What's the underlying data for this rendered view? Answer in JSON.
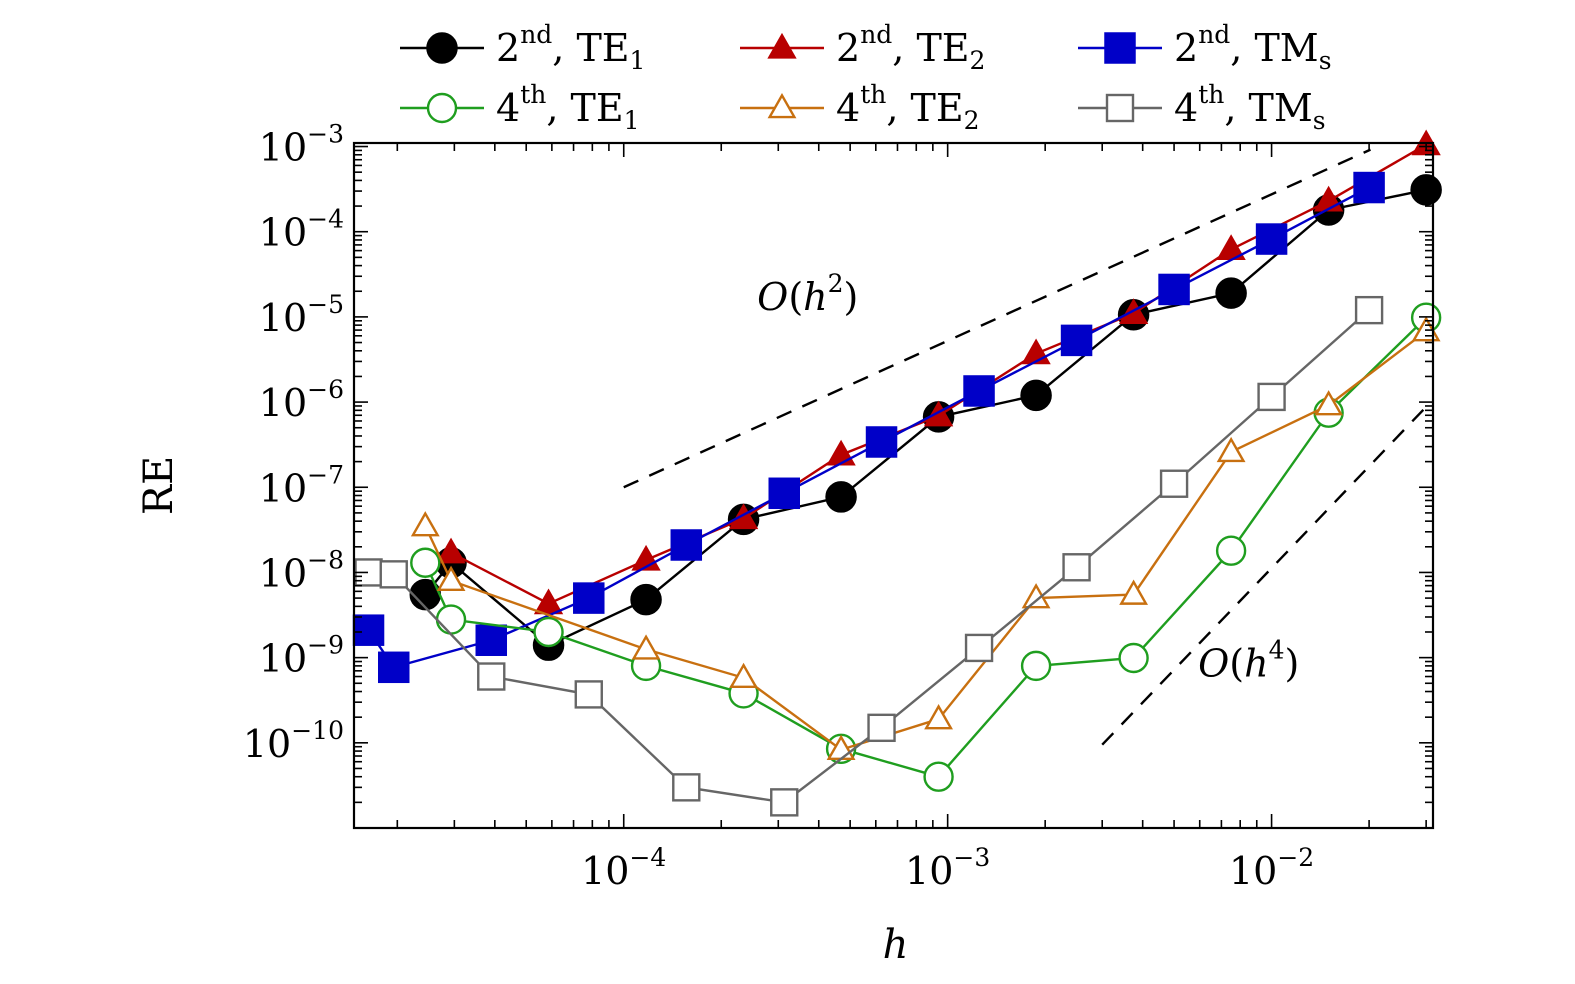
{
  "chart_data": {
    "type": "line",
    "xlabel": "h",
    "ylabel": "RE",
    "xscale": "log",
    "yscale": "log",
    "xlim": [
      1.47e-05,
      0.0315
    ],
    "ylim": [
      1e-11,
      0.0011
    ],
    "xticks": [
      {
        "value": 0.0001,
        "base": "10",
        "exp": "−4"
      },
      {
        "value": 0.001,
        "base": "10",
        "exp": "−3"
      },
      {
        "value": 0.01,
        "base": "10",
        "exp": "−2"
      }
    ],
    "yticks": [
      {
        "value": 1e-10,
        "base": "10",
        "exp": "−10"
      },
      {
        "value": 1e-09,
        "base": "10",
        "exp": "−9"
      },
      {
        "value": 1e-08,
        "base": "10",
        "exp": "−8"
      },
      {
        "value": 1e-07,
        "base": "10",
        "exp": "−7"
      },
      {
        "value": 1e-06,
        "base": "10",
        "exp": "−6"
      },
      {
        "value": 1e-05,
        "base": "10",
        "exp": "−5"
      },
      {
        "value": 0.0001,
        "base": "10",
        "exp": "−4"
      },
      {
        "value": 0.001,
        "base": "10",
        "exp": "−3"
      }
    ],
    "grid": false,
    "legend_position": "top",
    "series": [
      {
        "name": "2nd, TE1",
        "order": "2",
        "order_sup": "nd",
        "mode": "TE",
        "mode_sub": "1",
        "color": "#000000",
        "marker": "circle",
        "filled": true,
        "x": [
          2.44e-05,
          2.93e-05,
          5.86e-05,
          0.0001172,
          0.0002344,
          0.0004688,
          0.0009375,
          0.001875,
          0.00375,
          0.0075,
          0.015,
          0.03
        ],
        "y": [
          5.5e-09,
          1.3e-08,
          1.4e-09,
          4.8e-09,
          4.2e-08,
          7.7e-08,
          6.7e-07,
          1.2e-06,
          1.06e-05,
          1.9e-05,
          0.00018,
          0.00031
        ]
      },
      {
        "name": "2nd, TE2",
        "order": "2",
        "order_sup": "nd",
        "mode": "TE",
        "mode_sub": "2",
        "color": "#b80000",
        "marker": "triangle",
        "filled": true,
        "x": [
          2.93e-05,
          5.86e-05,
          0.0001172,
          0.0002344,
          0.0004688,
          0.0009375,
          0.001875,
          0.00375,
          0.0075,
          0.015,
          0.03
        ],
        "y": [
          1.7e-08,
          4.3e-09,
          1.4e-08,
          4.3e-08,
          2.4e-07,
          6.9e-07,
          3.7e-06,
          1.1e-05,
          6.2e-05,
          0.00023,
          0.00105
        ]
      },
      {
        "name": "2nd, TMs",
        "order": "2",
        "order_sup": "nd",
        "mode": "TM",
        "mode_sub": "s",
        "color": "#0000c8",
        "marker": "square",
        "filled": true,
        "x": [
          1.63e-05,
          1.95e-05,
          3.9e-05,
          7.8e-05,
          0.000156,
          0.000313,
          0.000625,
          0.00125,
          0.0025,
          0.005,
          0.01,
          0.02
        ],
        "y": [
          2.1e-09,
          7.7e-10,
          1.6e-09,
          5e-09,
          2.1e-08,
          8.5e-08,
          3.4e-07,
          1.35e-06,
          5.3e-06,
          2.1e-05,
          8.2e-05,
          0.00033
        ]
      },
      {
        "name": "4th, TE1",
        "order": "4",
        "order_sup": "th",
        "mode": "TE",
        "mode_sub": "1",
        "color": "#1f9e1f",
        "marker": "circle",
        "filled": false,
        "x": [
          2.44e-05,
          2.93e-05,
          5.86e-05,
          0.0001172,
          0.0002344,
          0.0004688,
          0.0009375,
          0.001875,
          0.00375,
          0.0075,
          0.015,
          0.03
        ],
        "y": [
          1.3e-08,
          2.8e-09,
          2e-09,
          8e-10,
          3.8e-10,
          8.5e-11,
          4e-11,
          8e-10,
          9.9e-10,
          1.8e-08,
          7.5e-07,
          9.8e-06
        ]
      },
      {
        "name": "4th, TE2",
        "order": "4",
        "order_sup": "th",
        "mode": "TE",
        "mode_sub": "2",
        "color": "#c87010",
        "marker": "triangle",
        "filled": false,
        "x": [
          2.44e-05,
          2.93e-05,
          0.0001172,
          0.0002344,
          0.0004688,
          0.0009375,
          0.001875,
          0.00375,
          0.0075,
          0.015,
          0.03
        ],
        "y": [
          3.5e-08,
          8e-09,
          1.25e-09,
          5.8e-10,
          8.3e-11,
          1.9e-10,
          5e-09,
          5.5e-09,
          2.6e-07,
          9.2e-07,
          6.8e-06
        ]
      },
      {
        "name": "4th, TMs",
        "order": "4",
        "order_sup": "th",
        "mode": "TM",
        "mode_sub": "s",
        "color": "#666666",
        "marker": "square",
        "filled": false,
        "x": [
          1.63e-05,
          1.95e-05,
          3.9e-05,
          7.8e-05,
          0.000156,
          0.000313,
          0.000625,
          0.00125,
          0.0025,
          0.005,
          0.01,
          0.02
        ],
        "y": [
          1e-08,
          9.5e-09,
          6e-10,
          3.7e-10,
          3e-11,
          2e-11,
          1.5e-10,
          1.3e-09,
          1.15e-08,
          1.1e-07,
          1.15e-06,
          1.2e-05
        ]
      }
    ],
    "reference_lines": [
      {
        "label_prefix": "O(h",
        "label_exp": "2",
        "label_suffix": ")",
        "x": [
          0.0001,
          0.0202
        ],
        "y": [
          1e-07,
          0.00092
        ],
        "label_x": 0.00037,
        "label_y": 1.2e-05
      },
      {
        "label_prefix": "O(h",
        "label_exp": "4",
        "label_suffix": ")",
        "x": [
          0.003,
          0.031
        ],
        "y": [
          9.5e-11,
          1e-06
        ],
        "label_x": 0.0085,
        "label_y": 6e-10
      }
    ]
  }
}
